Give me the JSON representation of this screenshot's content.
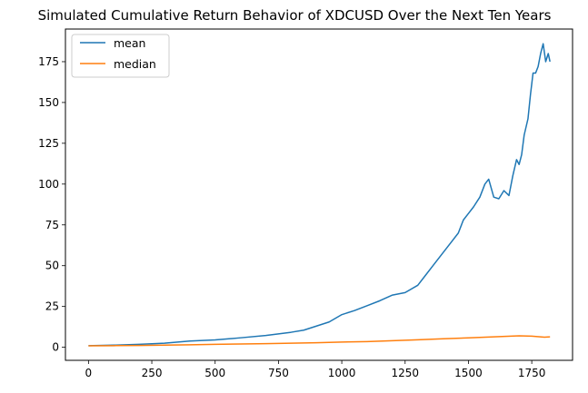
{
  "chart_data": {
    "type": "line",
    "title": "Simulated Cumulative Return Behavior of XDCUSD Over the Next Ten Years",
    "xlabel": "",
    "ylabel": "",
    "xlim": [
      -91,
      1911
    ],
    "ylim": [
      -8,
      195
    ],
    "xticks": [
      0,
      250,
      500,
      750,
      1000,
      1250,
      1500,
      1750
    ],
    "yticks": [
      0,
      25,
      50,
      75,
      100,
      125,
      150,
      175
    ],
    "grid": false,
    "legend_position": "upper-left",
    "series": [
      {
        "name": "mean",
        "color": "#1f77b4",
        "points": [
          [
            0,
            1.0
          ],
          [
            100,
            1.3
          ],
          [
            200,
            1.8
          ],
          [
            300,
            2.5
          ],
          [
            400,
            3.8
          ],
          [
            500,
            4.5
          ],
          [
            600,
            5.8
          ],
          [
            700,
            7.2
          ],
          [
            800,
            9.2
          ],
          [
            850,
            10.5
          ],
          [
            900,
            13.0
          ],
          [
            950,
            15.5
          ],
          [
            1000,
            20.0
          ],
          [
            1050,
            22.5
          ],
          [
            1100,
            25.5
          ],
          [
            1150,
            28.5
          ],
          [
            1200,
            32.0
          ],
          [
            1250,
            33.5
          ],
          [
            1300,
            38.0
          ],
          [
            1330,
            44.0
          ],
          [
            1360,
            50.0
          ],
          [
            1400,
            58.0
          ],
          [
            1430,
            64.0
          ],
          [
            1460,
            70.0
          ],
          [
            1480,
            78.0
          ],
          [
            1500,
            82.0
          ],
          [
            1520,
            86.0
          ],
          [
            1545,
            92.0
          ],
          [
            1565,
            100.0
          ],
          [
            1580,
            103.0
          ],
          [
            1600,
            92.0
          ],
          [
            1620,
            91.0
          ],
          [
            1640,
            96.0
          ],
          [
            1660,
            93.0
          ],
          [
            1675,
            105.0
          ],
          [
            1690,
            115.0
          ],
          [
            1700,
            112.0
          ],
          [
            1710,
            118.0
          ],
          [
            1720,
            130.0
          ],
          [
            1735,
            140.0
          ],
          [
            1745,
            155.0
          ],
          [
            1755,
            168.0
          ],
          [
            1765,
            168.0
          ],
          [
            1775,
            172.0
          ],
          [
            1785,
            180.0
          ],
          [
            1795,
            186.0
          ],
          [
            1805,
            175.0
          ],
          [
            1815,
            180.0
          ],
          [
            1822,
            175.0
          ]
        ]
      },
      {
        "name": "median",
        "color": "#ff7f0e",
        "points": [
          [
            0,
            0.9
          ],
          [
            100,
            1.0
          ],
          [
            200,
            1.1
          ],
          [
            300,
            1.3
          ],
          [
            400,
            1.5
          ],
          [
            500,
            1.8
          ],
          [
            600,
            2.0
          ],
          [
            700,
            2.2
          ],
          [
            800,
            2.5
          ],
          [
            900,
            2.8
          ],
          [
            1000,
            3.2
          ],
          [
            1100,
            3.5
          ],
          [
            1200,
            4.0
          ],
          [
            1300,
            4.6
          ],
          [
            1400,
            5.2
          ],
          [
            1500,
            5.8
          ],
          [
            1600,
            6.4
          ],
          [
            1700,
            7.0
          ],
          [
            1750,
            6.8
          ],
          [
            1800,
            6.2
          ],
          [
            1822,
            6.4
          ]
        ]
      }
    ]
  }
}
